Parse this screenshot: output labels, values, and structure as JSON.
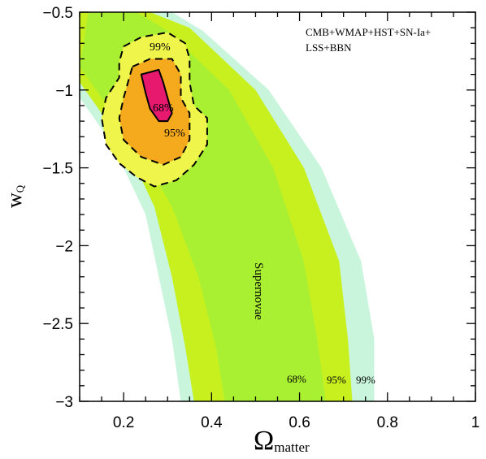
{
  "chart_data": {
    "type": "area",
    "xlabel": {
      "main": "Ω",
      "sub": "matter"
    },
    "ylabel": {
      "main": "w",
      "sub": "Q"
    },
    "xlim": [
      0.1,
      1.0
    ],
    "ylim": [
      -3.0,
      -0.5
    ],
    "x_ticks": [
      0.2,
      0.4,
      0.6,
      0.8,
      1.0
    ],
    "x_tick_labels": [
      "0.2",
      "0.4",
      "0.6",
      "0.8",
      "1"
    ],
    "y_ticks": [
      -3.0,
      -2.5,
      -2.0,
      -1.5,
      -1.0,
      -0.5
    ],
    "y_tick_labels": [
      "−3",
      "−2.5",
      "−2",
      "−1.5",
      "−1",
      "−0.5"
    ],
    "annotations": {
      "combined_label_line1": "CMB+WMAP+HST+SN-Ia+",
      "combined_label_line2": "LSS+BBN",
      "supernova_label": "Supernovae",
      "sn_68": "68%",
      "sn_95": "95%",
      "sn_99": "99%",
      "joint_68": "68%",
      "joint_95": "95%",
      "joint_99": "99%"
    },
    "colors": {
      "sn_99": "#c8f5dc",
      "sn_95": "#c8f01e",
      "sn_68": "#aaf032",
      "joint_99": "#f0f54b",
      "joint_95": "#f5aa1e",
      "joint_68": "#e6196e"
    },
    "supernova_band": {
      "level_99": {
        "left": [
          [
            0.1,
            -1.05
          ],
          [
            0.15,
            -1.25
          ],
          [
            0.2,
            -1.5
          ],
          [
            0.25,
            -1.8
          ],
          [
            0.28,
            -2.2
          ],
          [
            0.31,
            -2.6
          ],
          [
            0.33,
            -3.0
          ]
        ],
        "right": [
          [
            0.77,
            -3.0
          ],
          [
            0.77,
            -2.6
          ],
          [
            0.74,
            -2.1
          ],
          [
            0.65,
            -1.5
          ],
          [
            0.53,
            -1.0
          ],
          [
            0.38,
            -0.62
          ],
          [
            0.31,
            -0.5
          ],
          [
            0.1,
            -0.5
          ]
        ]
      },
      "level_95": {
        "left": [
          [
            0.1,
            -0.95
          ],
          [
            0.15,
            -1.15
          ],
          [
            0.22,
            -1.45
          ],
          [
            0.27,
            -1.75
          ],
          [
            0.31,
            -2.2
          ],
          [
            0.34,
            -2.65
          ],
          [
            0.36,
            -3.0
          ]
        ],
        "right": [
          [
            0.72,
            -3.0
          ],
          [
            0.71,
            -2.6
          ],
          [
            0.69,
            -2.1
          ],
          [
            0.61,
            -1.5
          ],
          [
            0.5,
            -1.0
          ],
          [
            0.35,
            -0.6
          ],
          [
            0.26,
            -0.5
          ],
          [
            0.1,
            -0.5
          ]
        ]
      },
      "level_68": {
        "left": [
          [
            0.1,
            -0.85
          ],
          [
            0.15,
            -1.05
          ],
          [
            0.23,
            -1.35
          ],
          [
            0.31,
            -1.75
          ],
          [
            0.37,
            -2.2
          ],
          [
            0.41,
            -2.65
          ],
          [
            0.43,
            -3.0
          ]
        ],
        "right": [
          [
            0.66,
            -3.0
          ],
          [
            0.64,
            -2.6
          ],
          [
            0.61,
            -2.1
          ],
          [
            0.54,
            -1.5
          ],
          [
            0.44,
            -1.0
          ],
          [
            0.3,
            -0.62
          ],
          [
            0.23,
            -0.5
          ],
          [
            0.12,
            -0.5
          ]
        ]
      }
    },
    "joint_contours": {
      "level_99": [
        [
          0.2,
          -0.72
        ],
        [
          0.24,
          -0.66
        ],
        [
          0.3,
          -0.63
        ],
        [
          0.34,
          -0.7
        ],
        [
          0.35,
          -0.8
        ],
        [
          0.35,
          -0.95
        ],
        [
          0.36,
          -1.1
        ],
        [
          0.39,
          -1.18
        ],
        [
          0.39,
          -1.35
        ],
        [
          0.36,
          -1.48
        ],
        [
          0.32,
          -1.58
        ],
        [
          0.27,
          -1.62
        ],
        [
          0.23,
          -1.56
        ],
        [
          0.19,
          -1.47
        ],
        [
          0.16,
          -1.35
        ],
        [
          0.15,
          -1.18
        ],
        [
          0.16,
          -1.05
        ],
        [
          0.19,
          -0.92
        ],
        [
          0.19,
          -0.82
        ],
        [
          0.2,
          -0.72
        ]
      ],
      "level_95": [
        [
          0.22,
          -0.85
        ],
        [
          0.26,
          -0.8
        ],
        [
          0.31,
          -0.8
        ],
        [
          0.33,
          -0.9
        ],
        [
          0.33,
          -1.05
        ],
        [
          0.35,
          -1.15
        ],
        [
          0.35,
          -1.32
        ],
        [
          0.33,
          -1.43
        ],
        [
          0.29,
          -1.48
        ],
        [
          0.24,
          -1.43
        ],
        [
          0.2,
          -1.32
        ],
        [
          0.19,
          -1.18
        ],
        [
          0.2,
          -1.05
        ],
        [
          0.21,
          -0.95
        ],
        [
          0.22,
          -0.85
        ]
      ],
      "level_68": [
        [
          0.24,
          -0.9
        ],
        [
          0.28,
          -0.87
        ],
        [
          0.29,
          -0.95
        ],
        [
          0.3,
          -1.05
        ],
        [
          0.31,
          -1.15
        ],
        [
          0.3,
          -1.2
        ],
        [
          0.28,
          -1.2
        ],
        [
          0.26,
          -1.12
        ],
        [
          0.25,
          -1.02
        ],
        [
          0.24,
          -0.9
        ]
      ]
    }
  }
}
